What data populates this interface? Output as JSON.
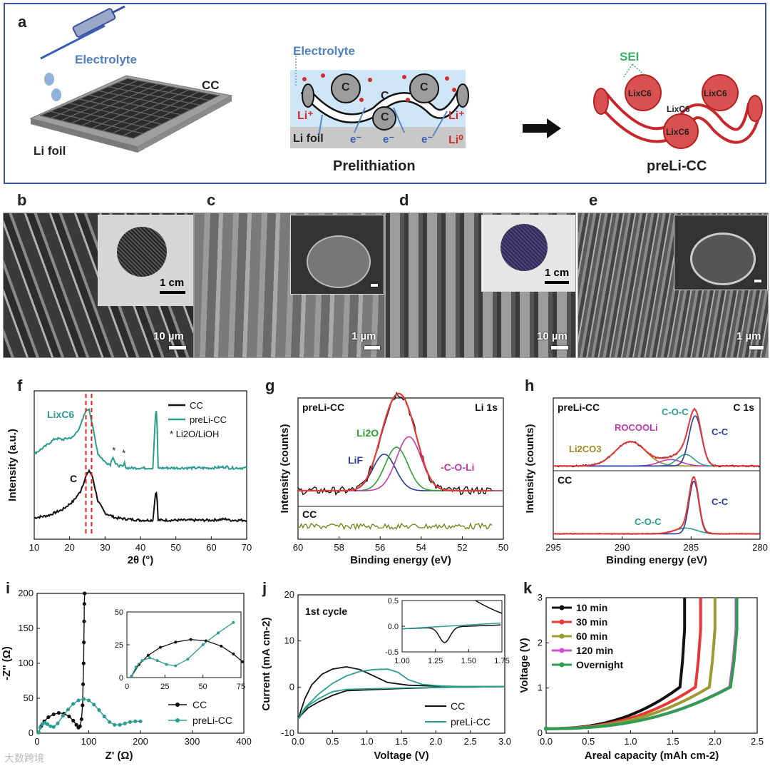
{
  "panel_a": {
    "label": "a",
    "electrolyte_left": "Electrolyte",
    "cc_label": "CC",
    "li_foil_left": "Li foil",
    "electrolyte_mid": "Electrolyte",
    "c_labels": [
      "C",
      "C",
      "C",
      "C"
    ],
    "li_plus": "Li⁺",
    "li_zero": "Li⁰",
    "e_minus": "e⁻",
    "li_foil_mid": "Li foil",
    "prelithiation": "Prelithiation",
    "sei": "SEI",
    "lixc6": "LixC6",
    "preli_cc": "preLi-CC"
  },
  "panel_b": {
    "label": "b",
    "scale_main": "10 µm",
    "scale_inset": "1 cm"
  },
  "panel_c": {
    "label": "c",
    "scale_main": "1 µm"
  },
  "panel_d": {
    "label": "d",
    "scale_main": "10 µm",
    "scale_inset": "1 cm"
  },
  "panel_e": {
    "label": "e",
    "scale_main": "1 µm"
  },
  "chart_data": [
    {
      "id": "f",
      "type": "line",
      "xlabel": "2θ (°)",
      "ylabel": "Intensity (a.u.)",
      "xlim": [
        10,
        70
      ],
      "xticks": [
        10,
        20,
        30,
        40,
        50,
        60,
        70
      ],
      "legend": [
        "CC",
        "preLi-CC",
        "* Li2O/LiOH"
      ],
      "annotations": [
        "LixC6",
        "C",
        "*",
        "*"
      ],
      "series": [
        {
          "name": "CC",
          "color": "#111111",
          "x": [
            10,
            14,
            18,
            21,
            23,
            24.5,
            25.5,
            26.5,
            28,
            30,
            33,
            36,
            40,
            43.5,
            44.3,
            44.6,
            45,
            46,
            50,
            55,
            60,
            64.5,
            65,
            70
          ],
          "y": [
            0.18,
            0.2,
            0.25,
            0.32,
            0.4,
            0.52,
            0.58,
            0.52,
            0.32,
            0.22,
            0.18,
            0.17,
            0.16,
            0.16,
            0.4,
            0.4,
            0.16,
            0.16,
            0.16,
            0.16,
            0.16,
            0.17,
            0.16,
            0.16
          ]
        },
        {
          "name": "preLi-CC",
          "color": "#2a9d8f",
          "x": [
            10,
            13,
            16,
            18,
            21,
            23,
            24.5,
            25.5,
            26.5,
            28,
            30,
            31.5,
            32.2,
            33,
            35,
            35.5,
            36,
            40,
            43.5,
            44.3,
            44.6,
            45,
            46,
            50,
            55,
            60,
            64.5,
            65,
            70
          ],
          "y": [
            0.72,
            0.78,
            0.85,
            0.84,
            0.86,
            0.95,
            1.08,
            1.1,
            0.95,
            0.72,
            0.65,
            0.63,
            0.7,
            0.63,
            0.61,
            0.64,
            0.6,
            0.6,
            0.6,
            1.08,
            1.08,
            0.6,
            0.6,
            0.6,
            0.6,
            0.6,
            0.61,
            0.6,
            0.6
          ]
        }
      ]
    },
    {
      "id": "g",
      "type": "line",
      "xlabel": "Binding energy (eV)",
      "ylabel": "Intensity (counts)",
      "xlim": [
        60,
        50
      ],
      "xticks": [
        60,
        58,
        56,
        54,
        52,
        50
      ],
      "title": "Li 1s",
      "subpanel_labels": [
        "preLi-CC",
        "CC"
      ],
      "peak_labels": [
        "Li2O",
        "LiF",
        "-C-O-Li"
      ],
      "peaks": [
        {
          "name": "LiF",
          "center": 55.8,
          "height": 0.42,
          "width": 0.55,
          "color": "#2b3a9e"
        },
        {
          "name": "Li2O",
          "center": 55.2,
          "height": 0.5,
          "width": 0.55,
          "color": "#2ca02c"
        },
        {
          "name": "-C-O-Li",
          "center": 54.6,
          "height": 0.62,
          "width": 0.6,
          "color": "#c03aa6"
        }
      ]
    },
    {
      "id": "h",
      "type": "line",
      "xlabel": "Binding energy (eV)",
      "ylabel": "Intensity (counts)",
      "xlim": [
        295,
        280
      ],
      "xticks": [
        295,
        290,
        285,
        280
      ],
      "title": "C 1s",
      "subpanel_labels": [
        "preLi-CC",
        "CC"
      ],
      "peak_labels_top": [
        "Li2CO3",
        "ROCOOLi",
        "C-O-C",
        "C-C"
      ],
      "peak_labels_bottom": [
        "C-O-C",
        "C-C"
      ],
      "peaks_top": [
        {
          "name": "Li2CO3",
          "center": 289.4,
          "height": 0.38,
          "width": 1.1,
          "color": "#a08a20"
        },
        {
          "name": "ROCOOLi",
          "center": 286.5,
          "height": 0.1,
          "width": 0.8,
          "color": "#c03aa6"
        },
        {
          "name": "C-O-C",
          "center": 285.4,
          "height": 0.18,
          "width": 0.6,
          "color": "#2a9d8f"
        },
        {
          "name": "C-C",
          "center": 284.7,
          "height": 0.78,
          "width": 0.45,
          "color": "#2b3a9e"
        }
      ],
      "peaks_bottom": [
        {
          "name": "C-O-C",
          "center": 285.4,
          "height": 0.1,
          "width": 0.8,
          "color": "#2a9d8f"
        },
        {
          "name": "C-C",
          "center": 284.8,
          "height": 0.92,
          "width": 0.35,
          "color": "#2b3a9e"
        }
      ]
    },
    {
      "id": "i",
      "type": "scatter",
      "xlabel": "Z' (Ω)",
      "ylabel": "-Z'' (Ω)",
      "xlim": [
        0,
        400
      ],
      "ylim": [
        0,
        200
      ],
      "xticks": [
        0,
        100,
        200,
        300,
        400
      ],
      "yticks": [
        0,
        50,
        100,
        150,
        200
      ],
      "legend": [
        "CC",
        "preLi-CC"
      ],
      "inset": {
        "xlim": [
          0,
          75
        ],
        "ylim": [
          0,
          50
        ],
        "xticks": [
          0,
          25,
          50,
          75
        ],
        "yticks": [
          0,
          25,
          50
        ]
      },
      "series": [
        {
          "name": "CC",
          "color": "#111111",
          "x": [
            3,
            8,
            14,
            22,
            32,
            42,
            52,
            62,
            70,
            76,
            80,
            83,
            86,
            88,
            89,
            90,
            90.5,
            91,
            91.5,
            92
          ],
          "y": [
            1,
            10,
            17,
            23,
            27,
            29,
            28,
            24,
            18,
            12,
            8,
            10,
            20,
            40,
            70,
            100,
            130,
            160,
            185,
            200
          ]
        },
        {
          "name": "preLi-CC",
          "color": "#2a9d8f",
          "x": [
            3,
            6,
            10,
            15,
            20,
            26,
            32,
            40,
            50,
            60,
            70,
            80,
            90,
            100,
            110,
            120,
            130,
            140,
            150,
            160,
            170,
            180,
            190,
            200
          ],
          "y": [
            1,
            8,
            13,
            15,
            13,
            10,
            9,
            14,
            25,
            34,
            42,
            47,
            49,
            47,
            41,
            33,
            24,
            16,
            12,
            12,
            14,
            16,
            17,
            17
          ]
        }
      ]
    },
    {
      "id": "j",
      "type": "line",
      "xlabel": "Voltage (V)",
      "ylabel": "Current (mA cm-2)",
      "xlim": [
        0,
        3.0
      ],
      "ylim": [
        -10,
        20
      ],
      "xticks": [
        0.0,
        0.5,
        1.0,
        1.5,
        2.0,
        2.5,
        3.0
      ],
      "yticks": [
        -10,
        0,
        10,
        20
      ],
      "annotation": "1st cycle",
      "legend": [
        "CC",
        "preLi-CC"
      ],
      "inset": {
        "xlim": [
          1.0,
          1.75
        ],
        "ylim": [
          -0.5,
          0.5
        ],
        "xticks": [
          1.0,
          1.25,
          1.5,
          1.75
        ],
        "yticks": [
          -0.5,
          0.0,
          0.5
        ]
      },
      "series": [
        {
          "name": "CC",
          "color": "#111111",
          "x": [
            0.0,
            0.1,
            0.2,
            0.35,
            0.5,
            0.7,
            0.9,
            1.1,
            1.3,
            1.6,
            2.0,
            2.5,
            3.0,
            2.5,
            2.0,
            1.5,
            1.0,
            0.7,
            0.5,
            0.3,
            0.15,
            0.05,
            0.0
          ],
          "y": [
            -7,
            -2.5,
            0.5,
            2.8,
            3.9,
            4.4,
            3.8,
            2.4,
            1.0,
            0.4,
            0.2,
            0.1,
            0.1,
            0.0,
            -0.1,
            -0.3,
            -0.6,
            -0.8,
            -1.8,
            -3.2,
            -4.5,
            -6,
            -7
          ]
        },
        {
          "name": "preLi-CC",
          "color": "#2a9d8f",
          "x": [
            0.0,
            0.1,
            0.3,
            0.5,
            0.7,
            0.9,
            1.1,
            1.3,
            1.45,
            1.6,
            1.8,
            2.1,
            2.5,
            3.0,
            2.5,
            2.0,
            1.5,
            1.0,
            0.7,
            0.5,
            0.3,
            0.15,
            0.05,
            0.0
          ],
          "y": [
            -7,
            -4.5,
            -1.5,
            0.8,
            2.4,
            3.4,
            3.8,
            3.9,
            3.2,
            1.6,
            0.6,
            0.2,
            0.1,
            0.1,
            0.0,
            -0.1,
            -0.2,
            -0.4,
            -0.5,
            -1.0,
            -2.5,
            -4,
            -5.8,
            -7
          ]
        }
      ]
    },
    {
      "id": "k",
      "type": "line",
      "xlabel": "Areal capacity (mAh cm-2)",
      "ylabel": "Voltage (V)",
      "xlim": [
        0,
        2.5
      ],
      "ylim": [
        0,
        3
      ],
      "xticks": [
        0.0,
        0.5,
        1.0,
        1.5,
        2.0,
        2.5
      ],
      "yticks": [
        0,
        1,
        2,
        3
      ],
      "legend": [
        "10 min",
        "30 min",
        "60 min",
        "120 min",
        "Overnight"
      ],
      "series": [
        {
          "name": "10 min",
          "color": "#111111",
          "end": 1.64
        },
        {
          "name": "30 min",
          "color": "#e53935",
          "end": 1.83
        },
        {
          "name": "60 min",
          "color": "#9a9a30",
          "end": 2.0
        },
        {
          "name": "120 min",
          "color": "#d04fd0",
          "end": 2.25
        },
        {
          "name": "Overnight",
          "color": "#2e9d4f",
          "end": 2.26
        }
      ]
    }
  ],
  "watermark": "大数跨境"
}
